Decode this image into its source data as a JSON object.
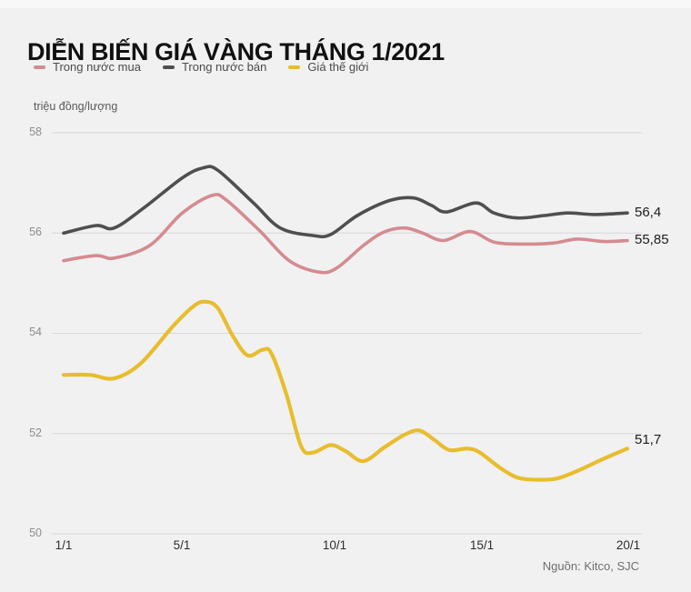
{
  "page": {
    "title": "DIỄN BIẾN GIÁ VÀNG THÁNG 1/2021",
    "unit_label": "triệu đồng/lượng",
    "source": "Nguồn: Kitco, SJC"
  },
  "legend": [
    {
      "label": "Trong nước mua",
      "color": "#d48b90"
    },
    {
      "label": "Trong nước bán",
      "color": "#4f4f4f"
    },
    {
      "label": "Giá thế giới",
      "color": "#e8bd2d"
    }
  ],
  "chart_data": {
    "type": "line",
    "title": "DIỄN BIẾN GIÁ VÀNG THÁNG 1/2021",
    "ylabel": "triệu đồng/lượng",
    "x_unit": "ngày tháng 1/2021",
    "xlim": [
      1,
      20
    ],
    "ylim": [
      50,
      58
    ],
    "grid": "horizontal",
    "grid_color": "#d8d8d8",
    "legend_position": "top",
    "yticks": [
      58,
      56,
      54,
      52,
      50
    ],
    "ytick_labels": [
      "58",
      "56",
      "54",
      "52",
      "50"
    ],
    "xticks": [
      1,
      5,
      10,
      15,
      20
    ],
    "xtick_labels": [
      "1/1",
      "5/1",
      "10/1",
      "15/1",
      "20/1"
    ],
    "series": [
      {
        "name": "Trong nước mua",
        "color": "#d48b90",
        "end_label": "55,85",
        "end_value": 55.85,
        "x": [
          1,
          2.1,
          2.7,
          3.9,
          5,
          6,
          6.5,
          7.6,
          8.6,
          9.6,
          10.2,
          11.1,
          11.8,
          12.5,
          13.1,
          13.8,
          14.7,
          15.5,
          16.4,
          17.5,
          18.3,
          19.2,
          20
        ],
        "y": [
          55.45,
          55.55,
          55.5,
          55.75,
          56.4,
          56.75,
          56.65,
          56.05,
          55.45,
          55.22,
          55.3,
          55.75,
          56.02,
          56.1,
          56.0,
          55.85,
          56.03,
          55.82,
          55.78,
          55.8,
          55.88,
          55.83,
          55.85
        ]
      },
      {
        "name": "Trong nước bán",
        "color": "#4f4f4f",
        "end_label": "56,4",
        "end_value": 56.4,
        "x": [
          1,
          2.1,
          2.7,
          3.7,
          5,
          5.7,
          6.2,
          7.4,
          8.3,
          9.4,
          10,
          10.9,
          12,
          12.8,
          13.4,
          13.9,
          14.9,
          15.5,
          16.3,
          17.2,
          18,
          18.9,
          20
        ],
        "y": [
          56.0,
          56.15,
          56.1,
          56.5,
          57.1,
          57.3,
          57.25,
          56.6,
          56.1,
          55.95,
          55.97,
          56.35,
          56.65,
          56.7,
          56.55,
          56.42,
          56.6,
          56.4,
          56.3,
          56.35,
          56.4,
          56.37,
          56.4
        ]
      },
      {
        "name": "Giá thế giới",
        "color": "#e8bd2d",
        "end_label": "51,7",
        "end_value": 51.7,
        "x": [
          1,
          1.9,
          2.7,
          3.6,
          4.7,
          5.4,
          5.8,
          6.2,
          6.7,
          7.2,
          7.7,
          8,
          8.5,
          9,
          9.4,
          10,
          10.5,
          11.1,
          11.8,
          12.5,
          13,
          13.5,
          14,
          14.6,
          15,
          15.7,
          16.3,
          16.9,
          17.6,
          18.3,
          19.1,
          20
        ],
        "y": [
          53.17,
          53.17,
          53.1,
          53.4,
          54.15,
          54.55,
          54.63,
          54.5,
          53.95,
          53.56,
          53.67,
          53.6,
          52.8,
          51.75,
          51.62,
          51.77,
          51.65,
          51.45,
          51.72,
          51.98,
          52.06,
          51.87,
          51.67,
          51.7,
          51.63,
          51.32,
          51.12,
          51.08,
          51.1,
          51.25,
          51.47,
          51.7
        ]
      }
    ]
  }
}
